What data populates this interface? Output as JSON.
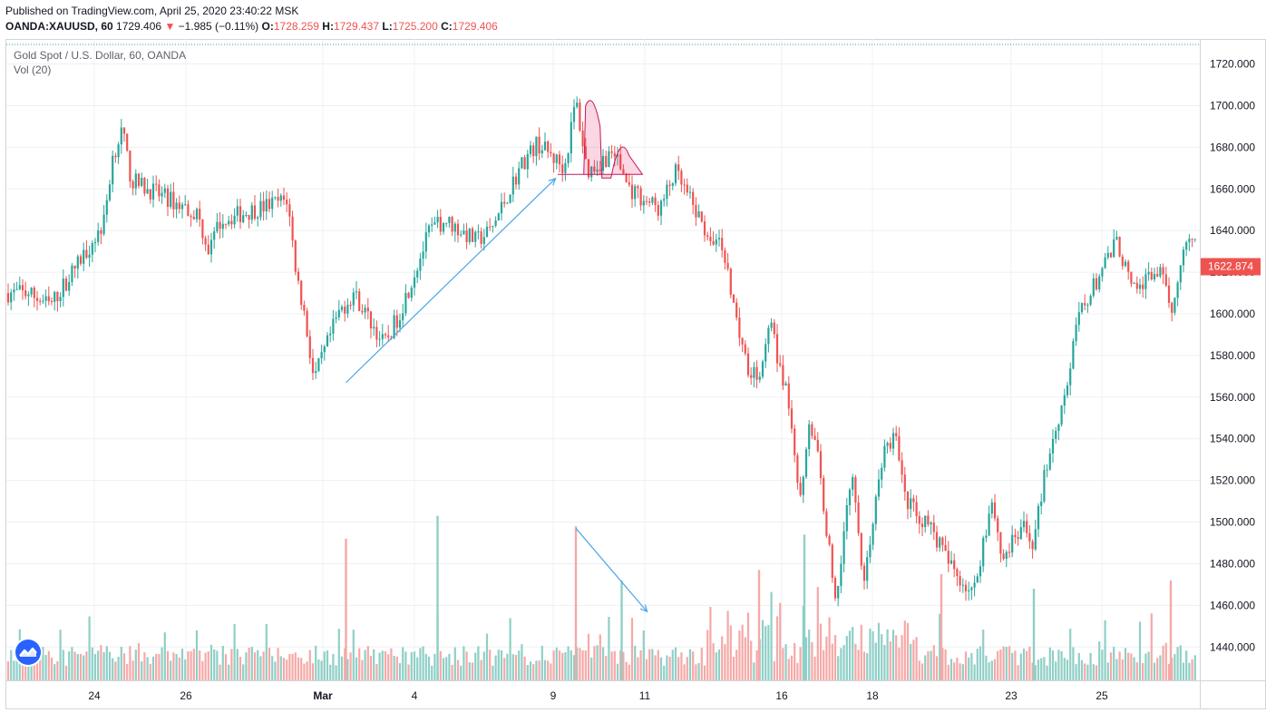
{
  "header": {
    "published": "Published on TradingView.com, April 25, 2020 23:40:22 MSK",
    "symbol": "OANDA:XAUUSD, 60",
    "last": "1729.406",
    "change": "−1.985 (−0.11%)",
    "open_label": "O:",
    "open": "1728.259",
    "high_label": "H:",
    "high": "1729.437",
    "low_label": "L:",
    "low": "1725.200",
    "close_label": "C:",
    "close": "1729.406"
  },
  "legend": {
    "title": "Gold Spot / U.S. Dollar, 60, OANDA",
    "volume": "Vol (20)"
  },
  "price_badge": "1622.874",
  "colors": {
    "up": "#26a69a",
    "down": "#ef5350",
    "vol_up": "#8fcfc6",
    "vol_down": "#f5a9a7",
    "arrow": "#4aa3e6",
    "grid": "#edf0f3",
    "price_line": "#26a69a"
  },
  "icons": {
    "logo": "tradingview-logo-icon",
    "change_arrow": "down-triangle-icon"
  },
  "chart_data": {
    "type": "candlestick",
    "title": "Gold Spot / U.S. Dollar, 60, OANDA",
    "ylim": [
      1424,
      1732
    ],
    "yticks": [
      1440,
      1460,
      1480,
      1500,
      1520,
      1540,
      1560,
      1580,
      1600,
      1620,
      1640,
      1660,
      1680,
      1700,
      1720
    ],
    "ytick_labels": [
      "1440.000",
      "1460.000",
      "1480.000",
      "1500.000",
      "1520.000",
      "1540.000",
      "1560.000",
      "1580.000",
      "1600.000",
      "1620.000",
      "1640.000",
      "1660.000",
      "1680.000",
      "1700.000",
      "1720.000"
    ],
    "xticks": [
      "24",
      "26",
      "Mar",
      "4",
      "9",
      "11",
      "16",
      "18",
      "23",
      "25"
    ],
    "last_price": 1622.874,
    "price_path": [
      [
        "Feb 21",
        1610
      ],
      [
        "Feb 21",
        1604
      ],
      [
        "Feb 21",
        1620
      ],
      [
        "Feb 24",
        1643
      ],
      [
        "Feb 24",
        1676
      ],
      [
        "Feb 24",
        1688
      ],
      [
        "Feb 24",
        1664
      ],
      [
        "Feb 26",
        1648
      ],
      [
        "Feb 26",
        1630
      ],
      [
        "Feb 26",
        1645
      ],
      [
        "Feb 28",
        1655
      ],
      [
        "Feb 28",
        1620
      ],
      [
        "Feb 28",
        1598
      ],
      [
        "Feb 28",
        1568
      ],
      [
        "Mar 2",
        1600
      ],
      [
        "Mar 2",
        1610
      ],
      [
        "Mar 3",
        1585
      ],
      [
        "Mar 3",
        1600
      ],
      [
        "Mar 4",
        1640
      ],
      [
        "Mar 4",
        1645
      ],
      [
        "Mar 5",
        1635
      ],
      [
        "Mar 5",
        1640
      ],
      [
        "Mar 6",
        1672
      ],
      [
        "Mar 6",
        1682
      ],
      [
        "Mar 9",
        1670
      ],
      [
        "Mar 9",
        1703
      ],
      [
        "Mar 9",
        1668
      ],
      [
        "Mar 10",
        1678
      ],
      [
        "Mar 10",
        1660
      ],
      [
        "Mar 11",
        1650
      ],
      [
        "Mar 11",
        1668
      ],
      [
        "Mar 12",
        1640
      ],
      [
        "Mar 12",
        1633
      ],
      [
        "Mar 13",
        1575
      ],
      [
        "Mar 13",
        1570
      ],
      [
        "Mar 13",
        1595
      ],
      [
        "Mar 16",
        1552
      ],
      [
        "Mar 16",
        1510
      ],
      [
        "Mar 16",
        1550
      ],
      [
        "Mar 16",
        1530
      ],
      [
        "Mar 17",
        1460
      ],
      [
        "Mar 17",
        1505
      ],
      [
        "Mar 17",
        1520
      ],
      [
        "Mar 17",
        1470
      ],
      [
        "Mar 18",
        1535
      ],
      [
        "Mar 18",
        1540
      ],
      [
        "Mar 18",
        1510
      ],
      [
        "Mar 19",
        1495
      ],
      [
        "Mar 19",
        1480
      ],
      [
        "Mar 20",
        1465
      ],
      [
        "Mar 20",
        1490
      ],
      [
        "Mar 20",
        1512
      ],
      [
        "Mar 20",
        1482
      ],
      [
        "Mar 23",
        1497
      ],
      [
        "Mar 23",
        1490
      ],
      [
        "Mar 23",
        1525
      ],
      [
        "Mar 24",
        1568
      ],
      [
        "Mar 24",
        1600
      ],
      [
        "Mar 24",
        1610
      ],
      [
        "Mar 25",
        1635
      ],
      [
        "Mar 25",
        1610
      ],
      [
        "Mar 26",
        1622
      ],
      [
        "Mar 26",
        1600
      ],
      [
        "Mar 26",
        1630
      ],
      [
        "Mar 27",
        1640
      ],
      [
        "Mar 27",
        1622.874
      ]
    ],
    "volume_peaks": [
      [
        "Mar 2",
        1492
      ],
      [
        "Mar 4",
        1503
      ],
      [
        "Mar 9",
        1498
      ],
      [
        "Mar 10",
        1472
      ],
      [
        "Mar 13",
        1477
      ],
      [
        "Mar 16",
        1494
      ],
      [
        "Mar 19",
        1475
      ],
      [
        "Mar 23",
        1468
      ],
      [
        "Mar 26",
        1472
      ]
    ],
    "annotations": [
      {
        "type": "arrow",
        "from": [
          "Mar 2",
          1567
        ],
        "to": [
          "Mar 9",
          1665
        ]
      },
      {
        "type": "arrow",
        "from": [
          "Mar 9",
          1497
        ],
        "to": [
          "Mar 11",
          1457
        ]
      },
      {
        "type": "pattern",
        "shape": "head-and-shoulders",
        "range": [
          "Mar 9",
          "Mar 10"
        ]
      }
    ]
  }
}
